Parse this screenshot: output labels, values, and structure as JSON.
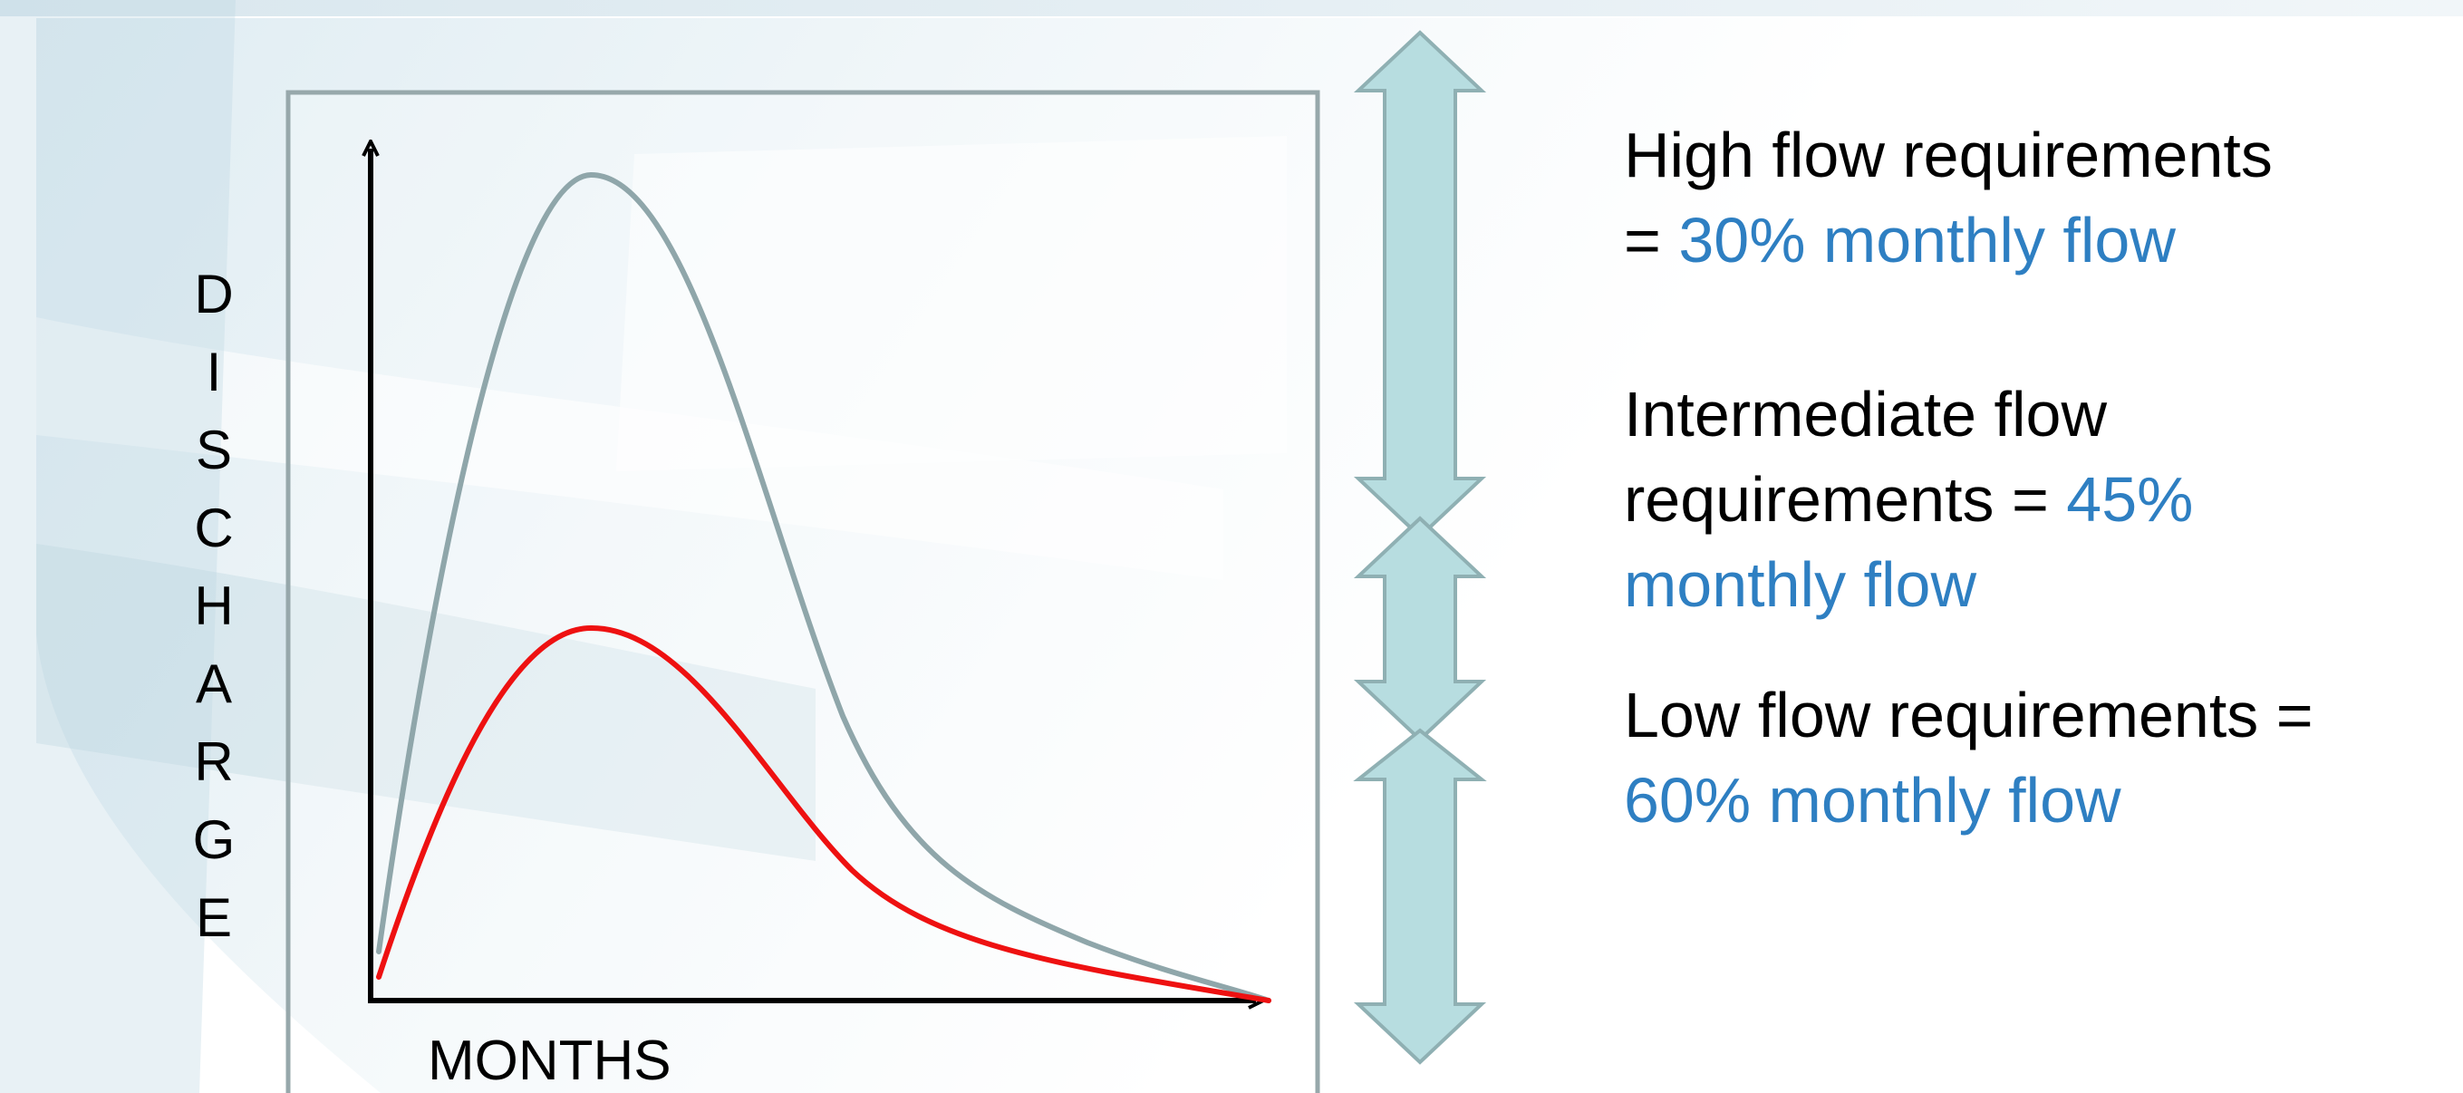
{
  "diagram": {
    "y_axis_label": "DISCHARGE",
    "x_axis_label": "MONTHS",
    "colors": {
      "natural_flow_curve": "#8fa6aa",
      "reduced_flow_curve": "#ee1111",
      "frame": "#97a8ab",
      "arrow_fill": "#b7dde0",
      "arrow_stroke": "#8fb0b3",
      "highlight_text": "#2e7fc2"
    }
  },
  "requirements": [
    {
      "id": "high",
      "lines": [
        {
          "text": "High flow  requirements",
          "highlight": ""
        },
        {
          "text": "= ",
          "highlight": "30% monthly flow"
        }
      ]
    },
    {
      "id": "intermediate",
      "lines": [
        {
          "text": "Intermediate flow",
          "highlight": ""
        },
        {
          "text": "requirements = ",
          "highlight": "45%"
        },
        {
          "text": "",
          "highlight": "monthly flow"
        }
      ]
    },
    {
      "id": "low",
      "lines": [
        {
          "text": "Low flow  requirements =",
          "highlight": ""
        },
        {
          "text": "",
          "highlight": "60% monthly flow"
        }
      ]
    }
  ]
}
